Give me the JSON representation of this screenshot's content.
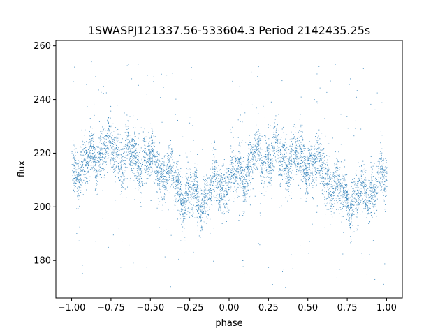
{
  "chart_data": {
    "type": "scatter",
    "title": "1SWASPJ121337.56-533604.3 Period 2142435.25s",
    "xlabel": "phase",
    "ylabel": "flux",
    "xlim": [
      -1.1,
      1.1
    ],
    "ylim": [
      166,
      262
    ],
    "x_ticks": [
      -1.0,
      -0.75,
      -0.5,
      -0.25,
      0.0,
      0.25,
      0.5,
      0.75,
      1.0
    ],
    "x_tick_labels": [
      "−1.00",
      "−0.75",
      "−0.50",
      "−0.25",
      "0.00",
      "0.25",
      "0.50",
      "0.75",
      "1.00"
    ],
    "y_ticks": [
      180,
      200,
      220,
      240,
      260
    ],
    "y_tick_labels": [
      "180",
      "200",
      "220",
      "240",
      "260"
    ],
    "grid": false,
    "marker_color": "#1f77b4",
    "series": [
      {
        "trend": {
          "x": [
            -1.0,
            -0.9,
            -0.8,
            -0.7,
            -0.6,
            -0.5,
            -0.4,
            -0.3,
            -0.2,
            -0.1,
            0.0,
            0.1,
            0.2,
            0.3,
            0.4,
            0.5,
            0.6,
            0.7,
            0.8,
            0.9,
            1.0
          ],
          "y": [
            213,
            217,
            221,
            220,
            218,
            217,
            213,
            205,
            203,
            207,
            210,
            214,
            219,
            219,
            218,
            217,
            213,
            205,
            203,
            207,
            211
          ]
        },
        "spread": 6,
        "outlier_range": [
          170,
          255
        ],
        "point_count": 6000
      }
    ]
  }
}
